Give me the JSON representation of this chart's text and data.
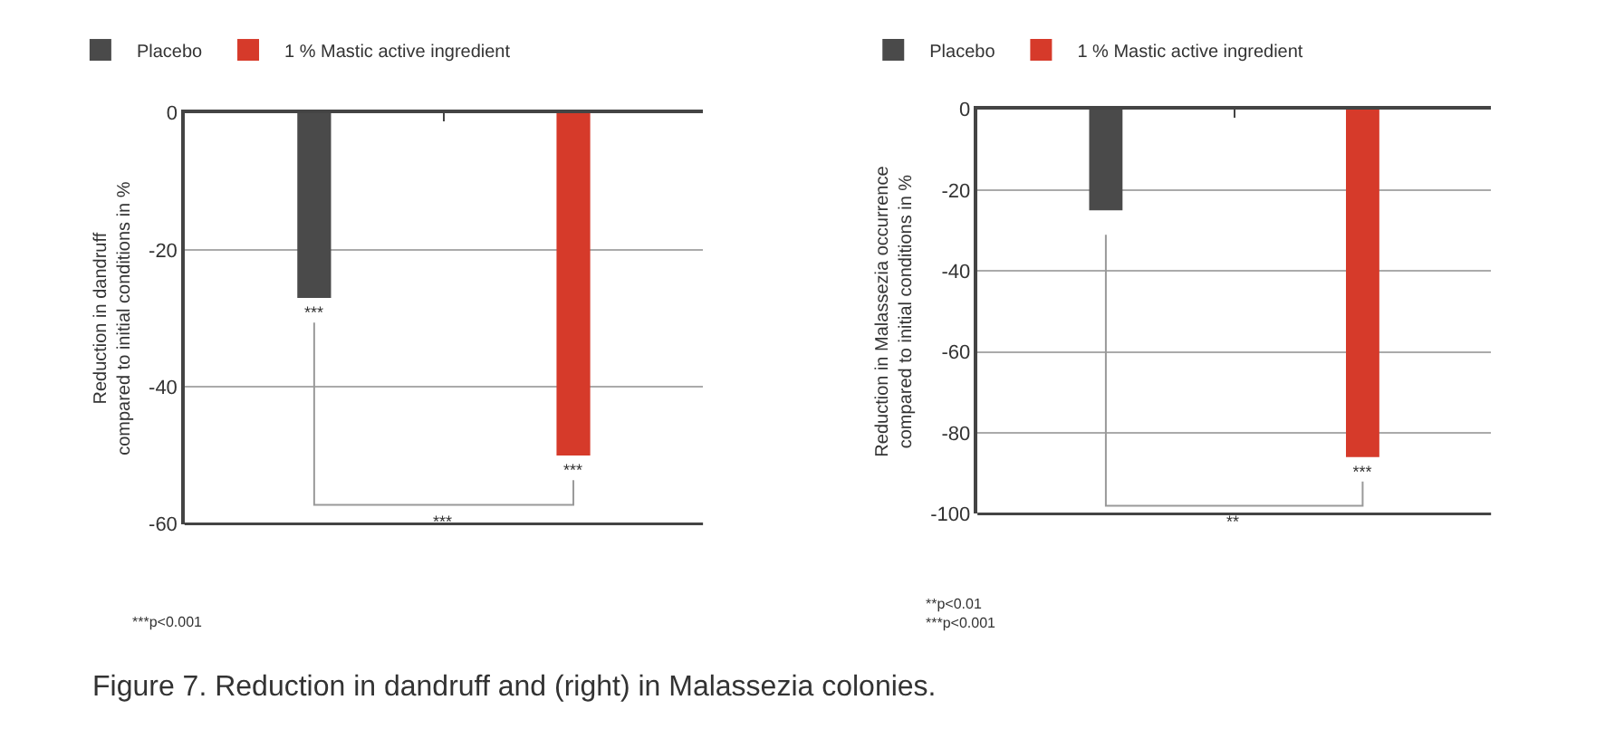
{
  "chart_data": [
    {
      "type": "bar",
      "title": "Figure 7. Reduction in dandruff and (right) in Malassezia colonies.",
      "ylabel": "Reduction in dandruff\ncompared to initial conditions in %",
      "categories": [
        null,
        null
      ],
      "series": [
        {
          "name": "Placebo",
          "color": "#4a4a4a",
          "values": [
            -27,
            null
          ],
          "value_labels": [
            "***",
            null
          ]
        },
        {
          "name": "1 % Mastic active ingredient",
          "color": "#d63a2a",
          "values": [
            null,
            -50
          ],
          "value_labels": [
            null,
            "***"
          ]
        }
      ],
      "ylim": [
        -60,
        0
      ],
      "yticks": [
        0,
        -20,
        -40,
        -60
      ],
      "grid": "y",
      "legend": "top left",
      "tick_labels": "y",
      "annotations": [
        "***",
        "***p<0.001"
      ]
    },
    {
      "type": "bar",
      "ylabel": "Reduction in Malassezia occurrence\ncompared to initial conditions in %",
      "categories": [
        null,
        null
      ],
      "series": [
        {
          "name": "Placebo",
          "color": "#4a4a4a",
          "values": [
            -25,
            null
          ]
        },
        {
          "name": "1 % Mastic active ingredient",
          "color": "#d63a2a",
          "values": [
            null,
            -86
          ],
          "value_labels": [
            null,
            "***"
          ]
        }
      ],
      "ylim": [
        -100,
        0
      ],
      "yticks": [
        0,
        -20,
        -40,
        -60,
        -80,
        -100
      ],
      "grid": "y",
      "legend": "top left",
      "tick_labels": "y",
      "annotations": [
        "**",
        "**p<0.01\n***p<0.001"
      ]
    }
  ]
}
